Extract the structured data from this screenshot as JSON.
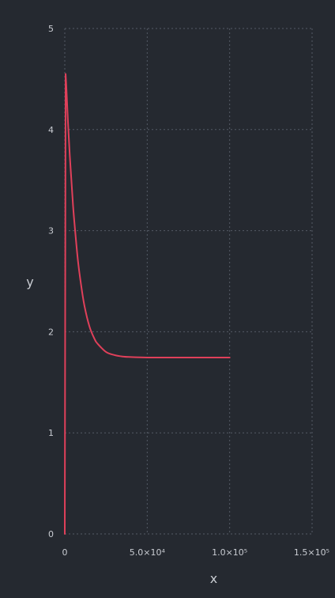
{
  "chart_data": {
    "type": "line",
    "title": "",
    "xlabel": "x",
    "ylabel": "y",
    "xlim": [
      0,
      150000
    ],
    "ylim": [
      0,
      5
    ],
    "x_ticks": [
      {
        "value": 0,
        "label": "0"
      },
      {
        "value": 50000,
        "label": "5.0×10⁴"
      },
      {
        "value": 100000,
        "label": "1.0×10⁵"
      },
      {
        "value": 150000,
        "label": "1.5×10⁵"
      }
    ],
    "y_ticks": [
      {
        "value": 0,
        "label": "0"
      },
      {
        "value": 1,
        "label": "1"
      },
      {
        "value": 2,
        "label": "2"
      },
      {
        "value": 3,
        "label": "3"
      },
      {
        "value": 4,
        "label": "4"
      },
      {
        "value": 5,
        "label": "5"
      }
    ],
    "grid": true,
    "legend": "none",
    "series": [
      {
        "color": "#e0405a",
        "x": [
          0,
          500,
          1000,
          2000,
          3000,
          4000,
          5000,
          6000,
          8000,
          10000,
          12000,
          15000,
          18000,
          20000,
          25000,
          30000,
          35000,
          40000,
          50000,
          60000,
          70000,
          80000,
          90000,
          100000
        ],
        "y": [
          0,
          4.55,
          4.4,
          4.05,
          3.75,
          3.5,
          3.25,
          3.05,
          2.7,
          2.45,
          2.25,
          2.05,
          1.93,
          1.88,
          1.8,
          1.77,
          1.755,
          1.75,
          1.745,
          1.745,
          1.745,
          1.745,
          1.745,
          1.745
        ]
      }
    ]
  },
  "colors": {
    "background": "#252930",
    "grid": "#555b66",
    "text": "#c9ccd2",
    "line": "#e0405a"
  }
}
